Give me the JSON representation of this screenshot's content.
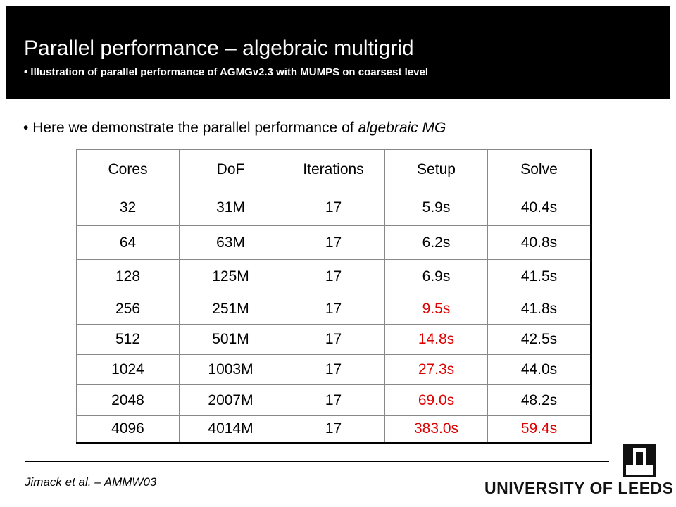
{
  "header": {
    "title": "Parallel performance – algebraic multigrid",
    "subtitle": "Illustration of parallel performance of AGMGv2.3 with MUMPS on coarsest level"
  },
  "bullet": {
    "text": "Here we demonstrate the parallel performance of ",
    "emphasis": "algebraic MG"
  },
  "table": {
    "columns": [
      "Cores",
      "DoF",
      "Iterations",
      "Setup",
      "Solve"
    ],
    "rows": [
      [
        "32",
        "31M",
        "17",
        "5.9s",
        "40.4s"
      ],
      [
        "64",
        "63M",
        "17",
        "6.2s",
        "40.8s"
      ],
      [
        "128",
        "125M",
        "17",
        "6.9s",
        "41.5s"
      ],
      [
        "256",
        "251M",
        "17",
        {
          "text": "9.5s",
          "color": "#e00000"
        },
        "41.8s"
      ],
      [
        "512",
        "501M",
        "17",
        {
          "text": "14.8s",
          "color": "#e00000"
        },
        "42.5s"
      ],
      [
        "1024",
        "1003M",
        "17",
        {
          "text": "27.3s",
          "color": "#e00000"
        },
        "44.0s"
      ],
      [
        "2048",
        "2007M",
        "17",
        {
          "text": "69.0s",
          "color": "#e00000"
        },
        "48.2s"
      ],
      [
        "4096",
        "4014M",
        "17",
        {
          "text": "383.0s",
          "color": "#e00000"
        },
        {
          "text": "59.4s",
          "color": "#e00000"
        }
      ]
    ]
  },
  "footer": {
    "citation": "Jimack et al. – AMMW03",
    "logo": "UNIVERSITY OF LEEDS"
  }
}
